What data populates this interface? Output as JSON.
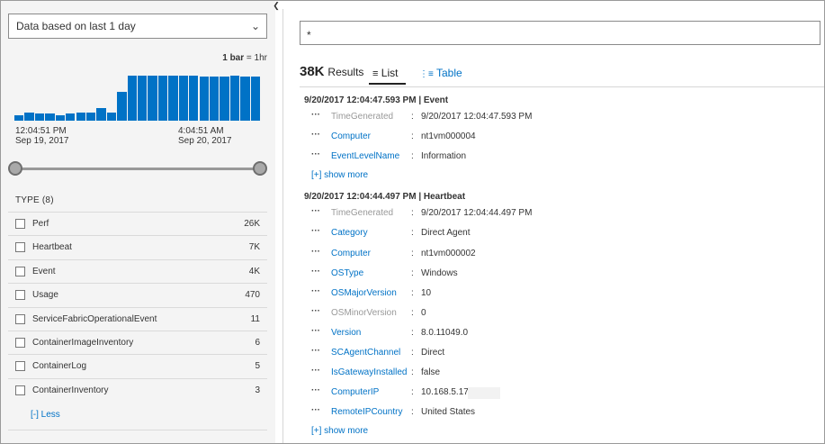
{
  "filter_panel": {
    "time_range_label": "Data based on last 1 day",
    "bar_unit_bold": "1 bar",
    "bar_unit_rest": " = 1hr",
    "histogram_values": [
      0.1,
      0.14,
      0.12,
      0.12,
      0.1,
      0.12,
      0.14,
      0.14,
      0.22,
      0.14,
      0.5,
      0.78,
      0.78,
      0.78,
      0.78,
      0.78,
      0.78,
      0.78,
      0.77,
      0.77,
      0.77,
      0.78,
      0.77,
      0.76
    ],
    "bar_color": "#0072c6",
    "tick_start_time": "12:04:51 PM",
    "tick_start_date": "Sep 19, 2017",
    "tick_mid_time": "4:04:51 AM",
    "tick_mid_date": "Sep 20, 2017",
    "type_header": "TYPE  (8)",
    "types": [
      {
        "name": "Perf",
        "count": "26K"
      },
      {
        "name": "Heartbeat",
        "count": "7K"
      },
      {
        "name": "Event",
        "count": "4K"
      },
      {
        "name": "Usage",
        "count": "470"
      },
      {
        "name": "ServiceFabricOperationalEvent",
        "count": "11"
      },
      {
        "name": "ContainerImageInventory",
        "count": "6"
      },
      {
        "name": "ContainerLog",
        "count": "5"
      },
      {
        "name": "ContainerInventory",
        "count": "3"
      }
    ],
    "less_link": "[-]  Less"
  },
  "search": {
    "query": "*"
  },
  "results": {
    "count": "38K",
    "count_label": "Results",
    "tab_list": "List",
    "tab_table": "Table",
    "records": [
      {
        "title": "9/20/2017 12:04:47.593 PM | Event",
        "fields": [
          {
            "key": "TimeGenerated",
            "value": "9/20/2017 12:04:47.593 PM",
            "style": "gray"
          },
          {
            "key": "Computer",
            "value": "nt1vm000004",
            "style": "link"
          },
          {
            "key": "EventLevelName",
            "value": "Information",
            "style": "link"
          }
        ],
        "show_more": "[+] show more"
      },
      {
        "title": "9/20/2017 12:04:44.497 PM | Heartbeat",
        "fields": [
          {
            "key": "TimeGenerated",
            "value": "9/20/2017 12:04:44.497 PM",
            "style": "gray"
          },
          {
            "key": "Category",
            "value": "Direct Agent",
            "style": "link"
          },
          {
            "key": "Computer",
            "value": "nt1vm000002",
            "style": "link"
          },
          {
            "key": "OSType",
            "value": "Windows",
            "style": "link"
          },
          {
            "key": "OSMajorVersion",
            "value": "10",
            "style": "link"
          },
          {
            "key": "OSMinorVersion",
            "value": "0",
            "style": "gray"
          },
          {
            "key": "Version",
            "value": "8.0.11049.0",
            "style": "link"
          },
          {
            "key": "SCAgentChannel",
            "value": "Direct",
            "style": "link"
          },
          {
            "key": "IsGatewayInstalled",
            "value": "false",
            "style": "link"
          },
          {
            "key": "ComputerIP",
            "value": "10.168.5.171",
            "style": "link"
          },
          {
            "key": "RemoteIPCountry",
            "value": "United States",
            "style": "link"
          }
        ],
        "show_more": "[+] show more"
      }
    ]
  },
  "colors": {
    "accent": "#0072c6",
    "panel_bg": "#f4f4f4"
  }
}
